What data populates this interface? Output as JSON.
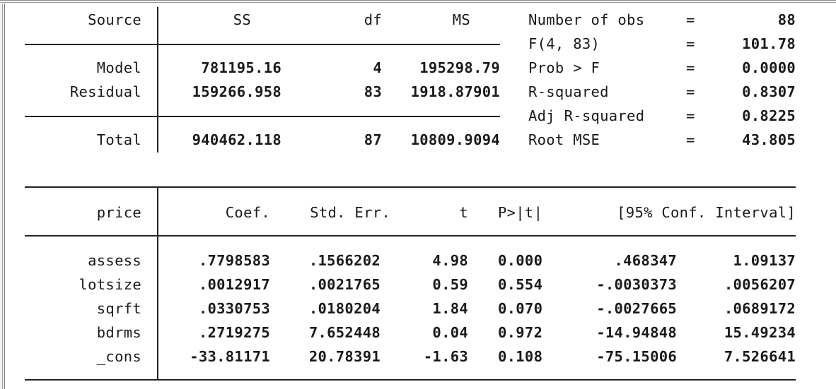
{
  "anova": {
    "headers": {
      "source": "Source",
      "ss": "SS",
      "df": "df",
      "ms": "MS"
    },
    "rows": [
      {
        "source": "Model",
        "ss": "781195.16",
        "df": "4",
        "ms": "195298.79"
      },
      {
        "source": "Residual",
        "ss": "159266.958",
        "df": "83",
        "ms": "1918.87901"
      },
      {
        "source": "Total",
        "ss": "940462.118",
        "df": "87",
        "ms": "10809.9094"
      }
    ]
  },
  "stats": [
    {
      "label": "Number of obs",
      "eq": "=",
      "value": "88"
    },
    {
      "label": "F(4, 83)",
      "eq": "=",
      "value": "101.78"
    },
    {
      "label": "Prob > F",
      "eq": "=",
      "value": "0.0000"
    },
    {
      "label": "R-squared",
      "eq": "=",
      "value": "0.8307"
    },
    {
      "label": "Adj R-squared",
      "eq": "=",
      "value": "0.8225"
    },
    {
      "label": "Root MSE",
      "eq": "=",
      "value": "43.805"
    }
  ],
  "coef": {
    "headers": {
      "var": "price",
      "coef": "Coef.",
      "se": "Std. Err.",
      "t": "t",
      "p": "P>|t|",
      "ci": "[95% Conf. Interval]"
    },
    "rows": [
      {
        "var": "assess",
        "coef": ".7798583",
        "se": ".1566202",
        "t": "4.98",
        "p": "0.000",
        "lo": ".468347",
        "hi": "1.09137"
      },
      {
        "var": "lotsize",
        "coef": ".0012917",
        "se": ".0021765",
        "t": "0.59",
        "p": "0.554",
        "lo": "-.0030373",
        "hi": ".0056207"
      },
      {
        "var": "sqrft",
        "coef": ".0330753",
        "se": ".0180204",
        "t": "1.84",
        "p": "0.070",
        "lo": "-.0027665",
        "hi": ".0689172"
      },
      {
        "var": "bdrms",
        "coef": ".2719275",
        "se": "7.652448",
        "t": "0.04",
        "p": "0.972",
        "lo": "-14.94848",
        "hi": "15.49234"
      },
      {
        "var": "_cons",
        "coef": "-33.81171",
        "se": "20.78391",
        "t": "-1.63",
        "p": "0.108",
        "lo": "-75.15006",
        "hi": "7.526641"
      }
    ]
  }
}
